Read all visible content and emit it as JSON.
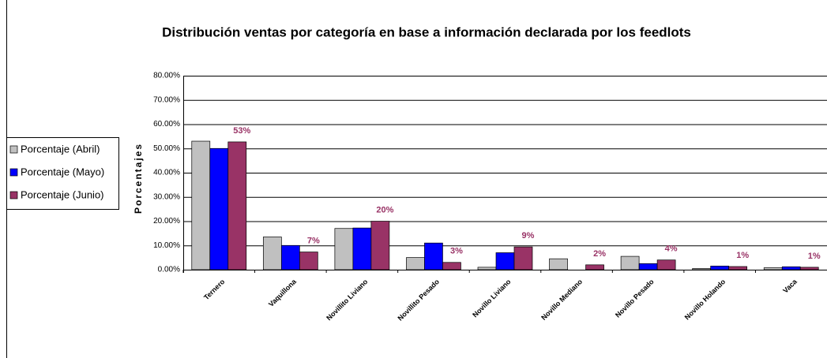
{
  "chart_data": {
    "type": "bar",
    "title": "Distribución ventas por categoría en base a información declarada por los feedlots",
    "y_label": "Porcentajes",
    "categories": [
      "Ternero",
      "Vaquillona",
      "Novillito Liviano",
      "Novillito Pesado",
      "Novillo Liviano",
      "Novillo Mediano",
      "Novillo Pesado",
      "Novillo Holando",
      "Vaca"
    ],
    "series": [
      {
        "name": "Porcentaje (Abril)",
        "color": "#c0c0c0",
        "values": [
          53,
          13.5,
          17,
          5,
          1,
          4.5,
          5.5,
          0.5,
          0.8
        ]
      },
      {
        "name": "Porcentaje (Mayo)",
        "color": "#0000ff",
        "values": [
          50,
          10,
          17.2,
          11,
          7,
          0,
          2.5,
          1.5,
          1.2
        ]
      },
      {
        "name": "Porcentaje (Junio)",
        "color": "#993366",
        "values": [
          52.7,
          7.3,
          20,
          3,
          9.4,
          2,
          4,
          1.3,
          1
        ],
        "value_labels": [
          "53%",
          "7%",
          "20%",
          "3%",
          "9%",
          "2%",
          "4%",
          "1%",
          "1%"
        ]
      }
    ],
    "ylim": [
      0,
      80
    ],
    "yticks": [
      {
        "value": 0,
        "label": "0.00%"
      },
      {
        "value": 10,
        "label": "10.00%"
      },
      {
        "value": 20,
        "label": "20.00%"
      },
      {
        "value": 30,
        "label": "30.00%"
      },
      {
        "value": 40,
        "label": "40.00%"
      },
      {
        "value": 50,
        "label": "50.00%"
      },
      {
        "value": 60,
        "label": "60.00%"
      },
      {
        "value": 70,
        "label": "70.00%"
      },
      {
        "value": 80,
        "label": "80.00%"
      }
    ],
    "grid": true,
    "legend": "left"
  }
}
